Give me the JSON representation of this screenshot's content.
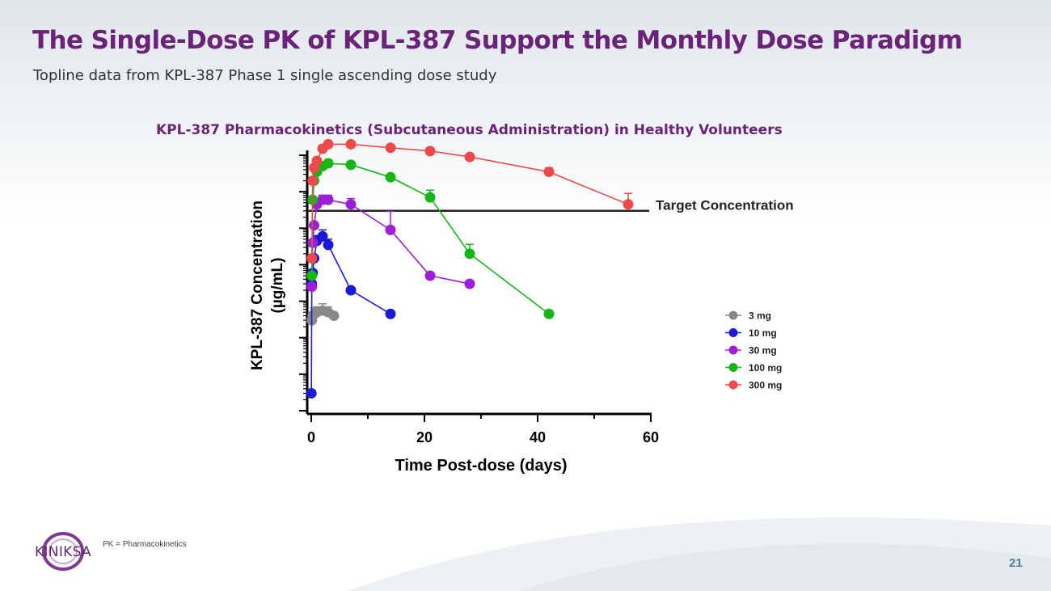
{
  "slide": {
    "title": "The Single-Dose PK of KPL-387 Support the Monthly Dose Paradigm",
    "subtitle": "Topline data from KPL-387 Phase 1 single ascending dose study",
    "chart_heading": "KPL-387 Pharmacokinetics (Subcutaneous Administration) in Healthy Volunteers",
    "footnote": "PK = Pharmacokinetics",
    "page_number": "21",
    "logo_text": "KINIKSA"
  },
  "colors": {
    "title": "#6b2379",
    "3mg": "#888888",
    "10mg": "#1a1ad6",
    "30mg": "#9b1fd6",
    "100mg": "#15b515",
    "300mg": "#ef4a4a"
  },
  "chart_data": {
    "type": "line",
    "title": "KPL-387 Pharmacokinetics (Subcutaneous Administration) in Healthy Volunteers",
    "xlabel": "Time Post-dose (days)",
    "ylabel_line1": "KPL-387 Concentration",
    "ylabel_line2": "(µg/mL)",
    "xlim": [
      0,
      60
    ],
    "xticks": [
      0,
      20,
      40,
      60
    ],
    "y_scale": "log",
    "ylim": [
      0.0001,
      1000
    ],
    "y_tick_labels_shown": false,
    "reference_line": {
      "label": "Target Concentration",
      "y": 30
    },
    "legend_position": "right",
    "series": [
      {
        "name": "3 mg",
        "color_key": "3mg",
        "x": [
          0.1,
          0.25,
          0.5,
          1,
          2,
          3,
          4
        ],
        "y": [
          0.03,
          0.04,
          0.045,
          0.05,
          0.055,
          0.05,
          0.04
        ],
        "err": [
          0,
          0,
          0.02,
          0.02,
          0.03,
          0.02,
          0
        ]
      },
      {
        "name": "10 mg",
        "color_key": "10mg",
        "x": [
          0.02,
          0.1,
          0.25,
          0.5,
          1,
          2,
          3,
          7,
          14
        ],
        "y": [
          0.0003,
          0.3,
          0.6,
          1.5,
          4.5,
          6,
          3.5,
          0.2,
          0.045
        ],
        "err": [
          0,
          0,
          0,
          0,
          1.8,
          3,
          1.5,
          0,
          0
        ]
      },
      {
        "name": "30 mg",
        "color_key": "30mg",
        "x": [
          0.1,
          0.25,
          0.5,
          1,
          2,
          3,
          7,
          14,
          21,
          28
        ],
        "y": [
          0.25,
          4,
          12,
          45,
          60,
          60,
          45,
          9,
          0.5,
          0.3
        ],
        "err": [
          0,
          0,
          0,
          10,
          20,
          20,
          20,
          20,
          0,
          0
        ]
      },
      {
        "name": "100 mg",
        "color_key": "100mg",
        "x": [
          0.1,
          0.25,
          0.5,
          1,
          2,
          3,
          7,
          14,
          21,
          28,
          42
        ],
        "y": [
          0.5,
          60,
          200,
          350,
          500,
          600,
          550,
          250,
          70,
          2,
          0.045
        ],
        "err": [
          0,
          0,
          0,
          0,
          100,
          150,
          0,
          0,
          40,
          1.6,
          0
        ]
      },
      {
        "name": "300 mg",
        "color_key": "300mg",
        "x": [
          0.1,
          0.25,
          0.5,
          1,
          2,
          3,
          7,
          14,
          21,
          28,
          42,
          56
        ],
        "y": [
          1.5,
          200,
          450,
          700,
          1500,
          2000,
          2000,
          1600,
          1300,
          900,
          350,
          45
        ],
        "err": [
          0,
          0,
          0,
          0,
          400,
          500,
          0,
          300,
          300,
          0,
          100,
          45
        ]
      }
    ]
  }
}
